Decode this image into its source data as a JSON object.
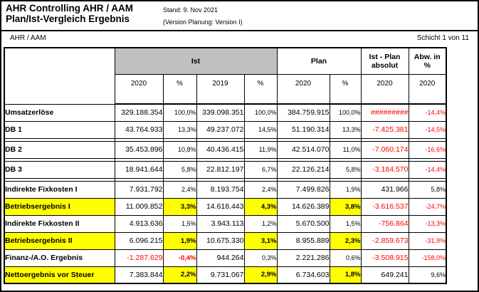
{
  "page": {
    "title_line1": "AHR Controlling AHR / AAM",
    "title_line2": "Plan/Ist-Vergleich Ergebnis",
    "stand": "Stand: 9. Nov 2021",
    "version": "(Version Planung: Version I)",
    "section_label": "AHR / AAM",
    "page_indicator": "Schicht 1 von 11"
  },
  "table": {
    "group_headers": {
      "ist": "Ist",
      "plan": "Plan",
      "istplan_line1": "Ist - Plan",
      "istplan_line2": "absolut",
      "abw_line1": "Abw. in",
      "abw_line2": "%"
    },
    "year_headers": [
      "2020",
      "%",
      "2019",
      "%",
      "2020",
      "%",
      "2020",
      "2020"
    ],
    "colors": {
      "highlight": "#ffff00",
      "negative": "#ff0000",
      "band_gray": "#c0c0c0"
    },
    "rows": [
      {
        "label": "Umsatzerlöse",
        "highlight": false,
        "spacer_after": false,
        "values": [
          "329.188.354",
          "100,0%",
          "339.098.351",
          "100,0%",
          "384.759.915",
          "100,0%",
          "#########",
          "-14,4%"
        ]
      },
      {
        "label": "DB 1",
        "highlight": false,
        "spacer_after": true,
        "values": [
          "43.764.933",
          "13,3%",
          "49.237.072",
          "14,5%",
          "51.190.314",
          "13,3%",
          "-7.425.381",
          "-14,5%"
        ]
      },
      {
        "label": "DB 2",
        "highlight": false,
        "spacer_after": true,
        "values": [
          "35.453.896",
          "10,8%",
          "40.436.415",
          "11,9%",
          "42.514.070",
          "11,0%",
          "-7.060.174",
          "-16,6%"
        ]
      },
      {
        "label": "DB 3",
        "highlight": false,
        "spacer_after": true,
        "values": [
          "18.941.644",
          "5,8%",
          "22.812.197",
          "6,7%",
          "22.126.214",
          "5,8%",
          "-3.184.570",
          "-14,4%"
        ]
      },
      {
        "label": "Indirekte Fixkosten I",
        "highlight": false,
        "spacer_after": false,
        "values": [
          "7.931.792",
          "2,4%",
          "8.193.754",
          "2,4%",
          "7.499.826",
          "1,9%",
          "431.966",
          "5,8%"
        ]
      },
      {
        "label": "Betriebsergebnis I",
        "highlight": true,
        "spacer_after": false,
        "values": [
          "11.009.852",
          "3,3%",
          "14.618.443",
          "4,3%",
          "14.626.389",
          "3,8%",
          "-3.616.537",
          "-24,7%"
        ]
      },
      {
        "label": "Indirekte Fixkosten II",
        "highlight": false,
        "spacer_after": false,
        "values": [
          "4.913.636",
          "1,5%",
          "3.943.113",
          "1,2%",
          "5.670.500",
          "1,5%",
          "-756.864",
          "-13,3%"
        ]
      },
      {
        "label": "Betriebsergebnis II",
        "highlight": true,
        "spacer_after": false,
        "values": [
          "6.096.215",
          "1,9%",
          "10.675.330",
          "3,1%",
          "8.955.889",
          "2,3%",
          "-2.859.673",
          "-31,9%"
        ]
      },
      {
        "label": "Finanz-/A.O. Ergebnis",
        "highlight": false,
        "spacer_after": false,
        "emphasis": [
          1
        ],
        "values": [
          "-1.287.629",
          "-0,4%",
          "944.264",
          "0,3%",
          "2.221.286",
          "0,6%",
          "-3.508.915",
          "-158,0%"
        ]
      },
      {
        "label": "Nettoergebnis vor Steuer",
        "highlight": true,
        "spacer_after": false,
        "values": [
          "7.383.844",
          "2,2%",
          "9.731.067",
          "2,9%",
          "6.734.603",
          "1,8%",
          "649.241",
          "9,6%"
        ]
      }
    ]
  }
}
